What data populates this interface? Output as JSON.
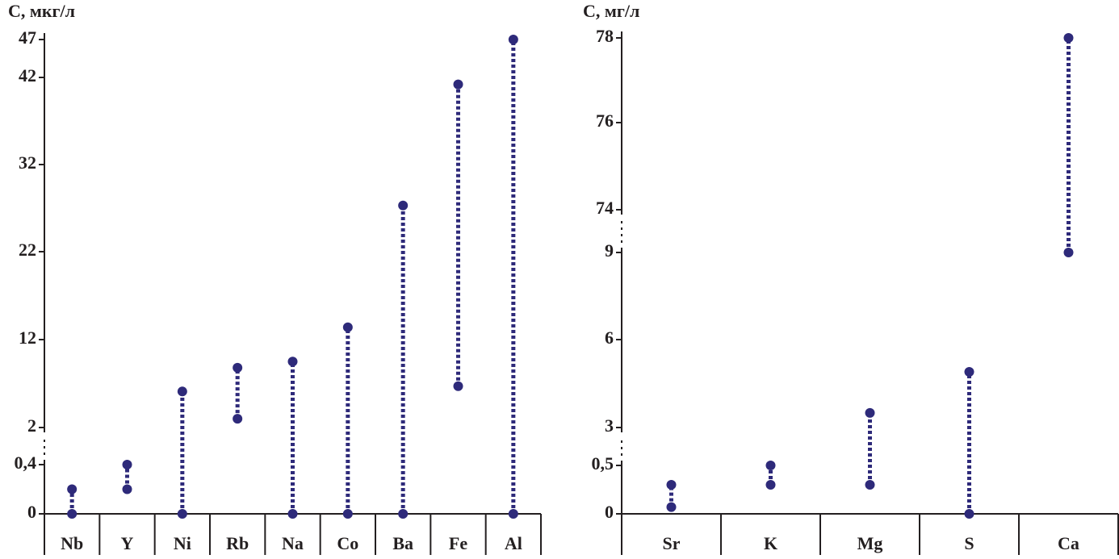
{
  "chart_data": [
    {
      "type": "range",
      "ylabel": "С, мкг/л",
      "categories": [
        "Nb",
        "Y",
        "Ni",
        "Rb",
        "Na",
        "Co",
        "Ba",
        "Fe",
        "Al"
      ],
      "low": [
        0,
        0.2,
        0,
        3.0,
        0,
        0,
        0,
        6.7,
        0
      ],
      "high": [
        0.2,
        0.4,
        6.1,
        8.8,
        9.5,
        13.4,
        27.3,
        41.2,
        47
      ],
      "color": "#2e2a7a",
      "ylim": [
        0,
        47
      ],
      "yticks": [
        0,
        {
          "value": 0.4,
          "label": "0,4"
        },
        2,
        12,
        22,
        32,
        42,
        47
      ]
    },
    {
      "type": "range",
      "ylabel": "С, мг/л",
      "categories": [
        "Sr",
        "K",
        "Mg",
        "S",
        "Ca"
      ],
      "low": [
        0.07,
        0.3,
        0.3,
        0,
        9
      ],
      "high": [
        0.3,
        0.5,
        3.5,
        4.9,
        78
      ],
      "color": "#2e2a7a",
      "ylim": [
        0,
        78
      ],
      "yticks": [
        0,
        {
          "value": 0.5,
          "label": "0,5"
        },
        3,
        6,
        9,
        74,
        76,
        78
      ]
    }
  ]
}
